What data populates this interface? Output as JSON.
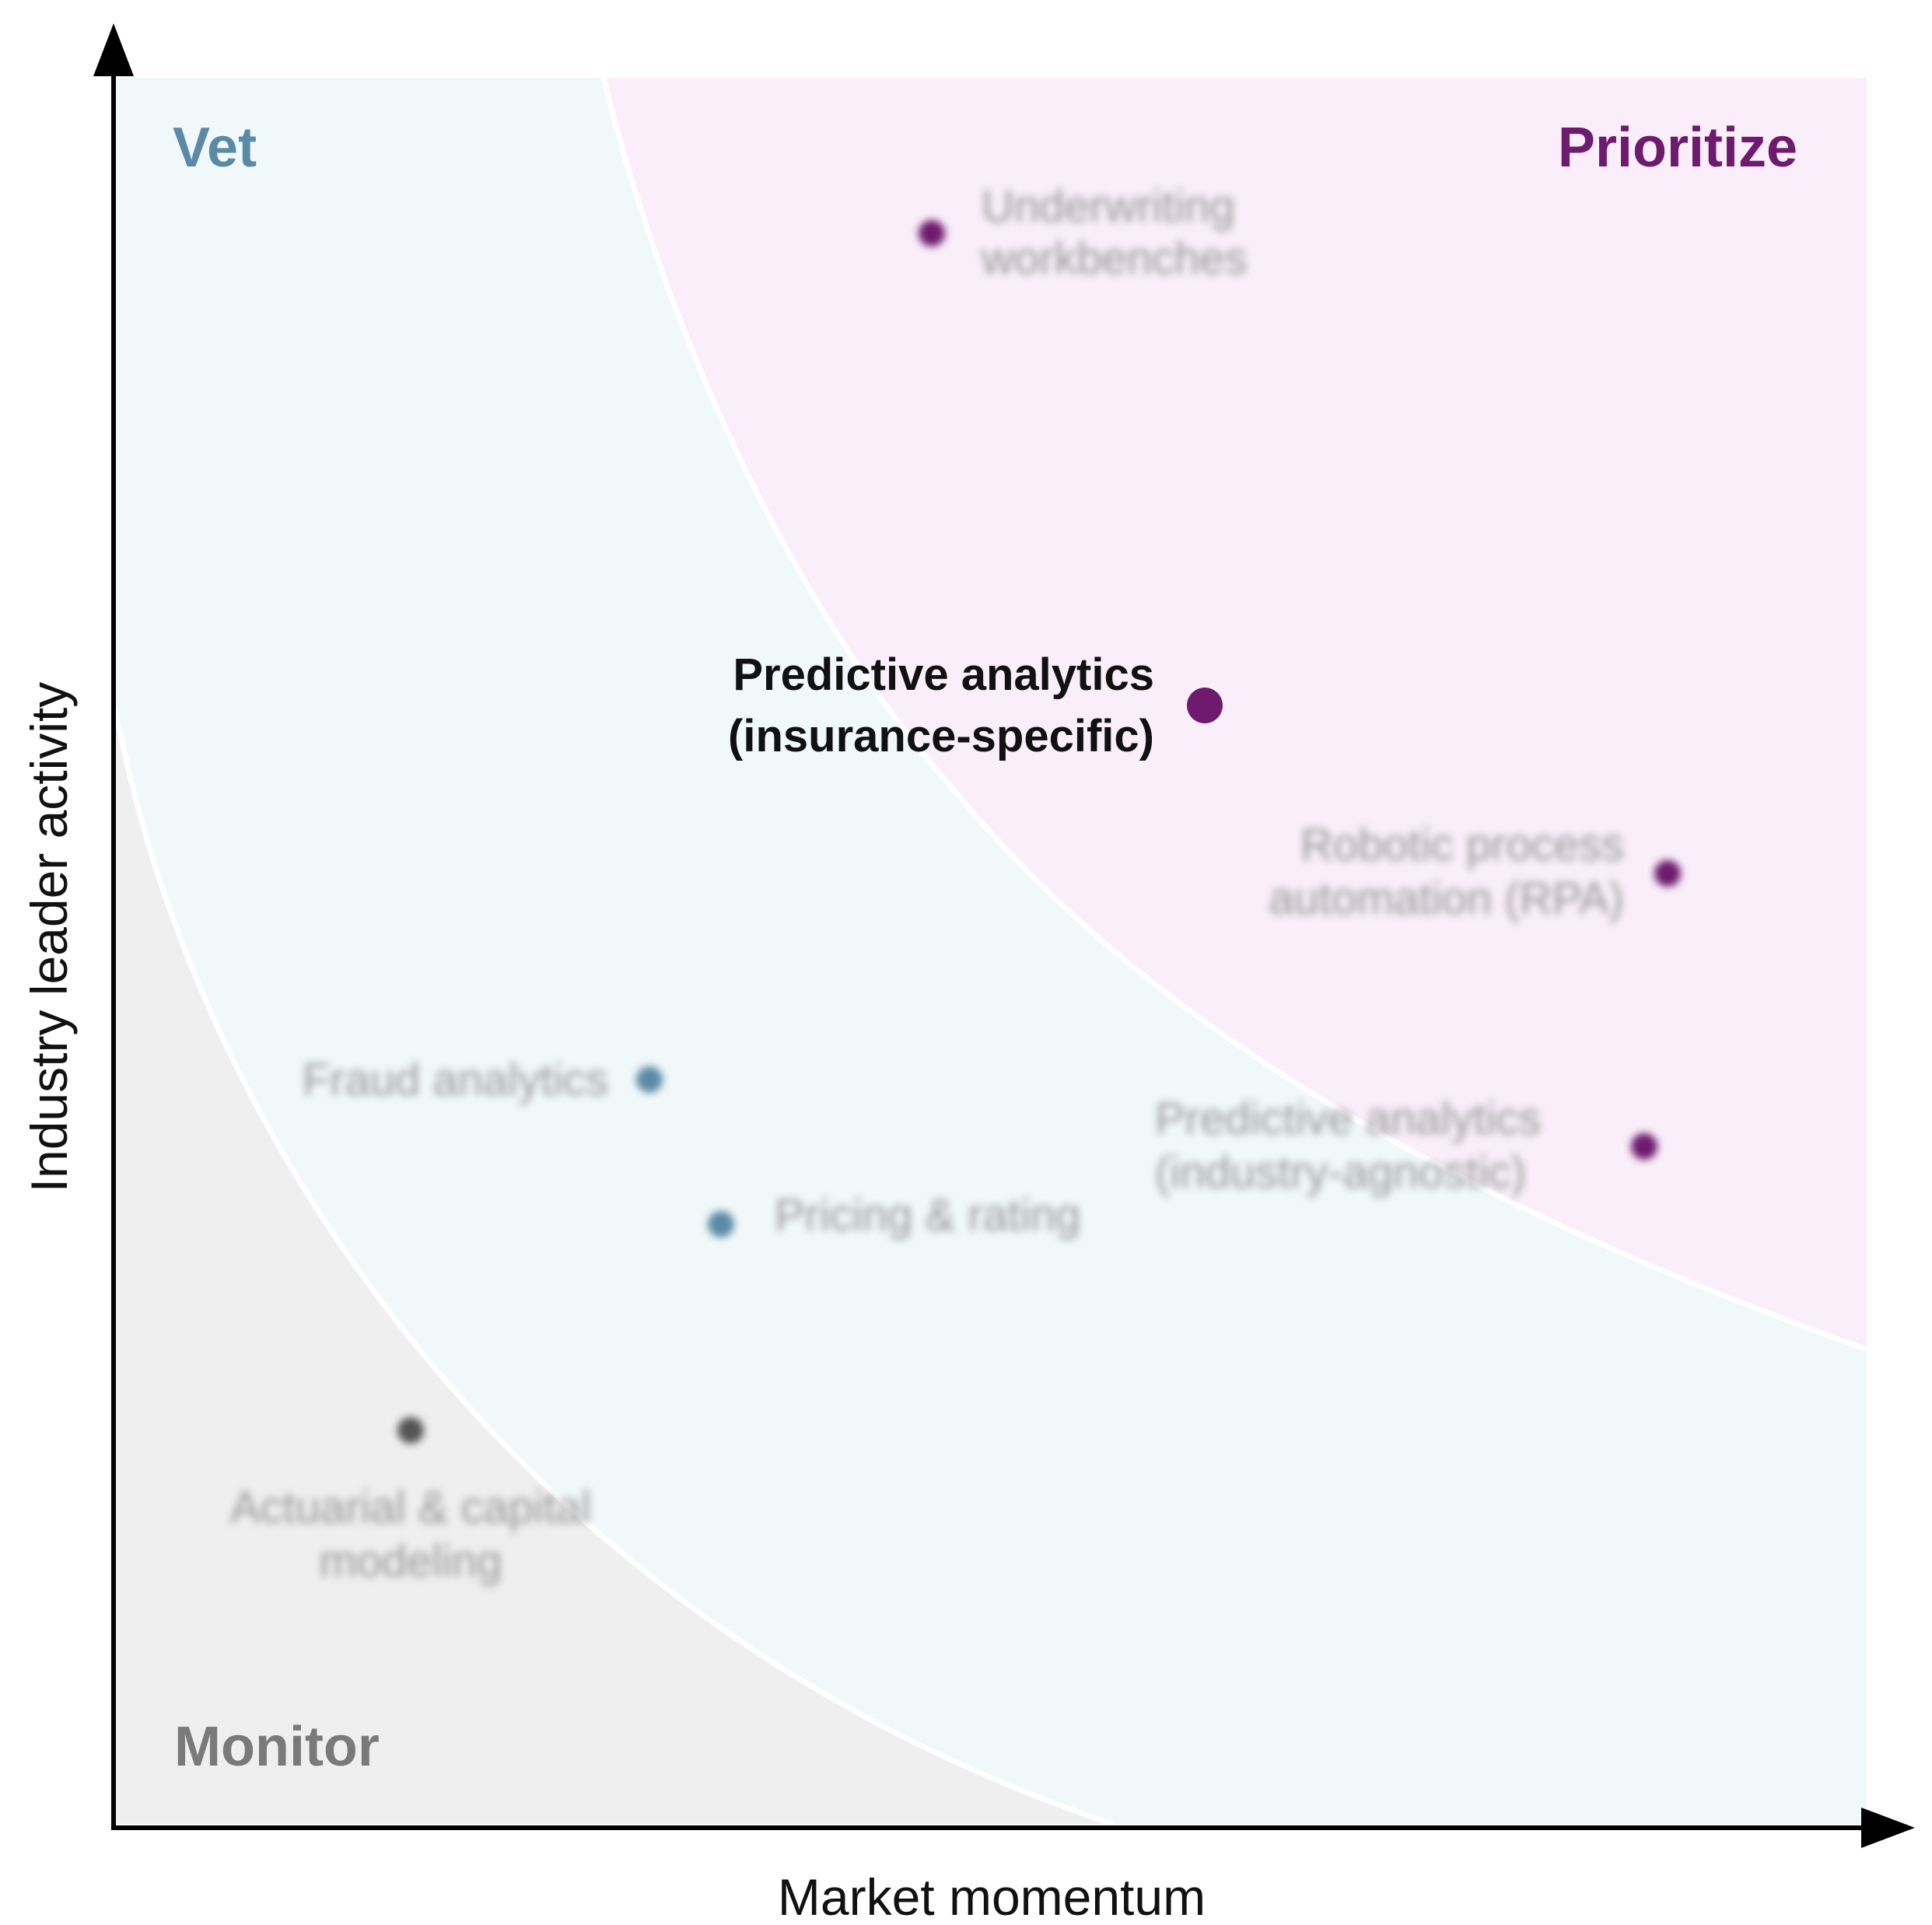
{
  "zones": [
    {
      "id": "monitor",
      "label": "Monitor",
      "label_color": "#7a7a7a",
      "fill": "#efefef"
    },
    {
      "id": "vet",
      "label": "Vet",
      "label_color": "#5a8aa6",
      "fill": "#f1f8fa"
    },
    {
      "id": "prioritize",
      "label": "Prioritize",
      "label_color": "#6e1a6e",
      "fill": "#f9eef9"
    }
  ],
  "axes": {
    "x_label": "Market momentum",
    "y_label": "Industry leader activity"
  },
  "items": [
    {
      "id": "underwriting",
      "lines": [
        "Underwriting",
        "workbenches"
      ],
      "zone": "prioritize",
      "color": "#6e1a6e",
      "highlight": false
    },
    {
      "id": "predictive-insurance",
      "lines": [
        "Predictive analytics",
        "(insurance-specific)"
      ],
      "zone": "prioritize",
      "color": "#6e1a6e",
      "highlight": true
    },
    {
      "id": "rpa",
      "lines": [
        "Robotic process",
        "automation (RPA)"
      ],
      "zone": "prioritize",
      "color": "#6e1a6e",
      "highlight": false
    },
    {
      "id": "fraud",
      "lines": [
        "Fraud analytics"
      ],
      "zone": "vet",
      "color": "#5a8aa6",
      "highlight": false
    },
    {
      "id": "predictive-agnostic",
      "lines": [
        "Predictive analytics",
        "(industry-agnostic)"
      ],
      "zone": "prioritize",
      "color": "#6e1a6e",
      "highlight": false
    },
    {
      "id": "pricing",
      "lines": [
        "Pricing & rating"
      ],
      "zone": "vet",
      "color": "#5a8aa6",
      "highlight": false
    },
    {
      "id": "actuarial",
      "lines": [
        "Actuarial & capital",
        "modeling"
      ],
      "zone": "monitor",
      "color": "#555555",
      "highlight": false
    }
  ]
}
